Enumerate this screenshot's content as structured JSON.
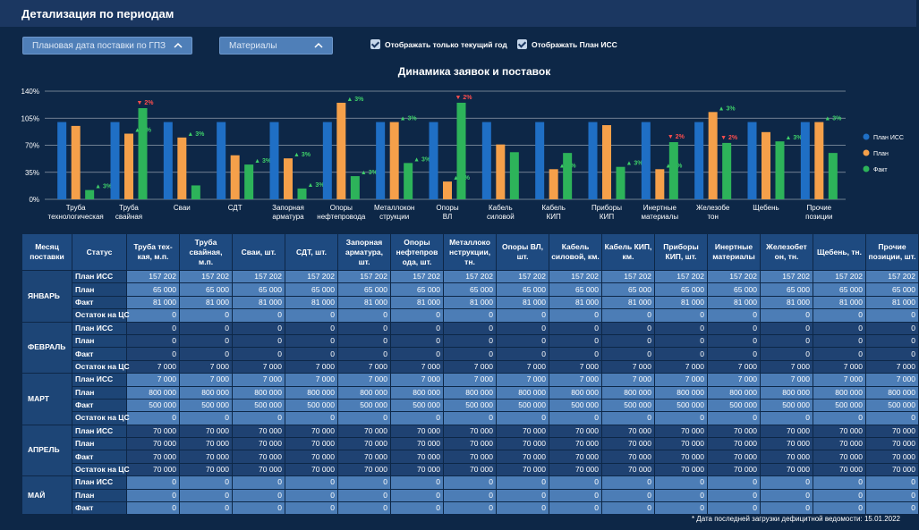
{
  "header": {
    "title": "Детализация по периодам"
  },
  "controls": {
    "dropdowns": [
      "Плановая дата поставки по ГПЗ",
      "Материалы"
    ],
    "checkboxes": [
      "Отображать только текущий год",
      "Отображать План ИСС"
    ]
  },
  "chart_data": {
    "type": "bar",
    "title": "Динамика заявок и поставок",
    "categories": [
      [
        "Труба",
        "технологическая"
      ],
      [
        "Труба",
        "свайная"
      ],
      [
        "Сваи"
      ],
      [
        "СДТ"
      ],
      [
        "Запорная",
        "арматура"
      ],
      [
        "Опоры",
        "нефтепровода"
      ],
      [
        "Металлокон",
        "струкции"
      ],
      [
        "Опоры",
        "ВЛ"
      ],
      [
        "Кабель",
        "силовой"
      ],
      [
        "Кабель",
        "КИП"
      ],
      [
        "Приборы",
        "КИП"
      ],
      [
        "Инертные",
        "материалы"
      ],
      [
        "Железобе",
        "тон"
      ],
      [
        "Щебень"
      ],
      [
        "Прочие",
        "позиции"
      ]
    ],
    "series": [
      {
        "name": "План ИСС",
        "color": "#1f6fc5",
        "values": [
          100,
          100,
          100,
          100,
          100,
          100,
          100,
          100,
          100,
          100,
          100,
          100,
          100,
          100,
          100
        ],
        "changes": [
          null,
          null,
          null,
          null,
          null,
          null,
          null,
          null,
          null,
          null,
          null,
          null,
          null,
          null,
          null
        ]
      },
      {
        "name": "План",
        "color": "#f5a04a",
        "values": [
          95,
          85,
          80,
          57,
          53,
          125,
          100,
          23,
          71,
          39,
          96,
          39,
          113,
          87,
          100
        ],
        "changes": [
          null,
          "▲ 3%",
          "▲ 3%",
          null,
          "▲ 3%",
          "▲ 3%",
          "▲ 3%",
          "▲ 3%",
          null,
          "▲ 2%",
          null,
          "▲ 3%",
          "▲ 3%",
          null,
          "▲ 3%"
        ]
      },
      {
        "name": "Факт",
        "color": "#2db35a",
        "values": [
          12,
          118,
          18,
          45,
          14,
          30,
          47,
          125,
          61,
          60,
          42,
          74,
          73,
          75,
          60
        ],
        "changes": [
          "▲ 3%",
          "▼ 2%",
          null,
          "▲ 3%",
          "▲ 3%",
          "▲ 3%",
          "▲ 3%",
          "▼ 2%",
          null,
          null,
          "▲ 3%",
          "▼ 2%",
          "▼ 2%",
          "▲ 3%",
          null
        ]
      }
    ],
    "ylim": [
      0,
      140
    ],
    "yticks": [
      {
        "value": 0,
        "label": "0%"
      },
      {
        "value": 35,
        "label": "35%"
      },
      {
        "value": 70,
        "label": "70%"
      },
      {
        "value": 105,
        "label": "105%"
      },
      {
        "value": 140,
        "label": "140%"
      }
    ],
    "grid": true,
    "legend": "right"
  },
  "table": {
    "headers": [
      "Месяц поставки",
      "Статус",
      "Труба тех-кая, м.п.",
      "Труба свайная, м.п.",
      "Сваи, шт.",
      "СДТ, шт.",
      "Запорная арматура, шт.",
      "Опоры нефтепров ода, шт.",
      "Металлоко нструкции, тн.",
      "Опоры ВЛ, шт.",
      "Кабель силовой, км.",
      "Кабель КИП, км.",
      "Приборы КИП, шт.",
      "Инертные материалы",
      "Железобет он, тн.",
      "Щебень, тн.",
      "Прочие позиции, шт."
    ],
    "months": [
      {
        "label": "ЯНВАРЬ",
        "rows": [
          {
            "status": "План ИСС",
            "cells": [
              "157 202",
              "157 202",
              "157 202",
              "157 202",
              "157 202",
              "157 202",
              "157 202",
              "157 202",
              "157 202",
              "157 202",
              "157 202",
              "157 202",
              "157 202",
              "157 202",
              "157 202"
            ]
          },
          {
            "status": "План",
            "cells": [
              "65 000",
              "65 000",
              "65 000",
              "65 000",
              "65 000",
              "65 000",
              "65 000",
              "65 000",
              "65 000",
              "65 000",
              "65 000",
              "65 000",
              "65 000",
              "65 000",
              "65 000"
            ]
          },
          {
            "status": "Факт",
            "cells": [
              "81 000",
              "81 000",
              "81 000",
              "81 000",
              "81 000",
              "81 000",
              "81 000",
              "81 000",
              "81 000",
              "81 000",
              "81 000",
              "81 000",
              "81 000",
              "81 000",
              "81 000"
            ]
          },
          {
            "status": "Остаток на ЦС",
            "cells": [
              "0",
              "0",
              "0",
              "0",
              "0",
              "0",
              "0",
              "0",
              "0",
              "0",
              "0",
              "0",
              "0",
              "0",
              "0"
            ]
          }
        ]
      },
      {
        "label": "ФЕВРАЛЬ",
        "rows": [
          {
            "status": "План ИСС",
            "cells": [
              "0",
              "0",
              "0",
              "0",
              "0",
              "0",
              "0",
              "0",
              "0",
              "0",
              "0",
              "0",
              "0",
              "0",
              "0"
            ]
          },
          {
            "status": "План",
            "cells": [
              "0",
              "0",
              "0",
              "0",
              "0",
              "0",
              "0",
              "0",
              "0",
              "0",
              "0",
              "0",
              "0",
              "0",
              "0"
            ]
          },
          {
            "status": "Факт",
            "cells": [
              "0",
              "0",
              "0",
              "0",
              "0",
              "0",
              "0",
              "0",
              "0",
              "0",
              "0",
              "0",
              "0",
              "0",
              "0"
            ]
          },
          {
            "status": "Остаток на ЦС",
            "cells": [
              "7 000",
              "7 000",
              "7 000",
              "7 000",
              "7 000",
              "7 000",
              "7 000",
              "7 000",
              "7 000",
              "7 000",
              "7 000",
              "7 000",
              "7 000",
              "7 000",
              "7 000"
            ]
          }
        ]
      },
      {
        "label": "МАРТ",
        "rows": [
          {
            "status": "План ИСС",
            "cells": [
              "7 000",
              "7 000",
              "7 000",
              "7 000",
              "7 000",
              "7 000",
              "7 000",
              "7 000",
              "7 000",
              "7 000",
              "7 000",
              "7 000",
              "7 000",
              "7 000",
              "7 000"
            ]
          },
          {
            "status": "План",
            "cells": [
              "800 000",
              "800 000",
              "800 000",
              "800 000",
              "800 000",
              "800 000",
              "800 000",
              "800 000",
              "800 000",
              "800 000",
              "800 000",
              "800 000",
              "800 000",
              "800 000",
              "800 000"
            ]
          },
          {
            "status": "Факт",
            "cells": [
              "500 000",
              "500 000",
              "500 000",
              "500 000",
              "500 000",
              "500 000",
              "500 000",
              "500 000",
              "500 000",
              "500 000",
              "500 000",
              "500 000",
              "500 000",
              "500 000",
              "500 000"
            ]
          },
          {
            "status": "Остаток на ЦС",
            "cells": [
              "0",
              "0",
              "0",
              "0",
              "0",
              "0",
              "0",
              "0",
              "0",
              "0",
              "0",
              "0",
              "0",
              "0",
              "0"
            ]
          }
        ]
      },
      {
        "label": "АПРЕЛЬ",
        "rows": [
          {
            "status": "План ИСС",
            "cells": [
              "70 000",
              "70 000",
              "70 000",
              "70 000",
              "70 000",
              "70 000",
              "70 000",
              "70 000",
              "70 000",
              "70 000",
              "70 000",
              "70 000",
              "70 000",
              "70 000",
              "70 000"
            ]
          },
          {
            "status": "План",
            "cells": [
              "70 000",
              "70 000",
              "70 000",
              "70 000",
              "70 000",
              "70 000",
              "70 000",
              "70 000",
              "70 000",
              "70 000",
              "70 000",
              "70 000",
              "70 000",
              "70 000",
              "70 000"
            ]
          },
          {
            "status": "Факт",
            "cells": [
              "70 000",
              "70 000",
              "70 000",
              "70 000",
              "70 000",
              "70 000",
              "70 000",
              "70 000",
              "70 000",
              "70 000",
              "70 000",
              "70 000",
              "70 000",
              "70 000",
              "70 000"
            ]
          },
          {
            "status": "Остаток на ЦС",
            "cells": [
              "70 000",
              "70 000",
              "70 000",
              "70 000",
              "70 000",
              "70 000",
              "70 000",
              "70 000",
              "70 000",
              "70 000",
              "70 000",
              "70 000",
              "70 000",
              "70 000",
              "70 000"
            ]
          }
        ]
      },
      {
        "label": "МАЙ",
        "rows": [
          {
            "status": "План ИСС",
            "cells": [
              "0",
              "0",
              "0",
              "0",
              "0",
              "0",
              "0",
              "0",
              "0",
              "0",
              "0",
              "0",
              "0",
              "0",
              "0"
            ]
          },
          {
            "status": "План",
            "cells": [
              "0",
              "0",
              "0",
              "0",
              "0",
              "0",
              "0",
              "0",
              "0",
              "0",
              "0",
              "0",
              "0",
              "0",
              "0"
            ]
          },
          {
            "status": "Факт",
            "cells": [
              "0",
              "0",
              "0",
              "0",
              "0",
              "0",
              "0",
              "0",
              "0",
              "0",
              "0",
              "0",
              "0",
              "0",
              "0"
            ]
          }
        ]
      }
    ]
  },
  "footer": {
    "note": "* Дата последней загрузки дефицитной ведомости: 15.01.2022"
  }
}
